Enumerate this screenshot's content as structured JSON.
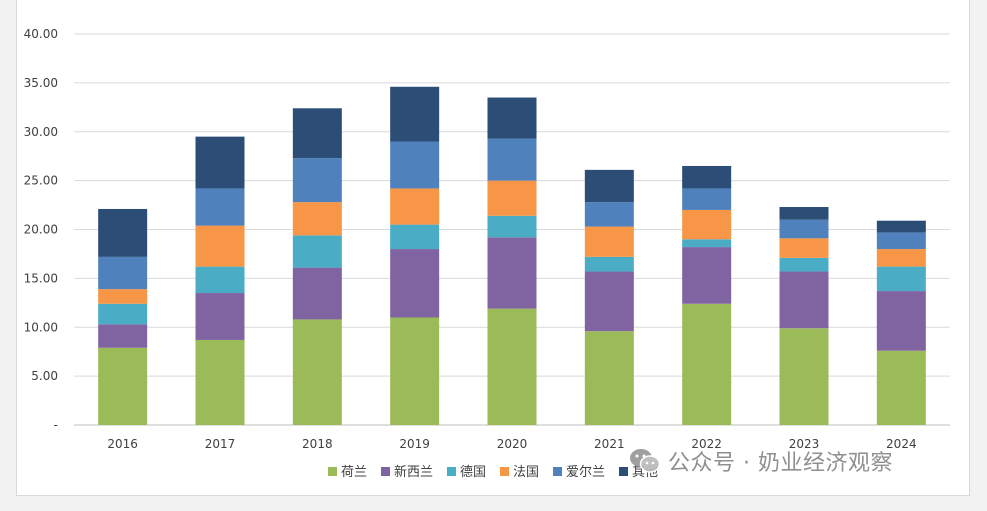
{
  "chart_data": {
    "type": "bar",
    "stacked": true,
    "categories": [
      "2016",
      "2017",
      "2018",
      "2019",
      "2020",
      "2021",
      "2022",
      "2023",
      "2024"
    ],
    "ylim": [
      0,
      40
    ],
    "yticks": [
      0,
      5,
      10,
      15,
      20,
      25,
      30,
      35,
      40
    ],
    "ytick_labels": [
      "-",
      "5.00",
      "10.00",
      "15.00",
      "20.00",
      "25.00",
      "30.00",
      "35.00",
      "40.00"
    ],
    "grid": true,
    "legend_position": "bottom",
    "series": [
      {
        "name": "荷兰",
        "color": "#9bbb59",
        "values": [
          7.9,
          8.7,
          10.8,
          11.0,
          11.9,
          9.6,
          12.4,
          9.9,
          7.6
        ]
      },
      {
        "name": "新西兰",
        "color": "#8064a2",
        "values": [
          2.4,
          4.8,
          5.3,
          7.0,
          7.3,
          6.1,
          5.8,
          5.8,
          6.1
        ]
      },
      {
        "name": "德国",
        "color": "#4bacc6",
        "values": [
          2.1,
          2.7,
          3.3,
          2.5,
          2.2,
          1.5,
          0.8,
          1.4,
          2.5
        ]
      },
      {
        "name": "法国",
        "color": "#f79646",
        "values": [
          1.5,
          4.2,
          3.4,
          3.7,
          3.6,
          3.1,
          3.0,
          2.0,
          1.8
        ]
      },
      {
        "name": "爱尔兰",
        "color": "#4f81bd",
        "values": [
          3.3,
          3.8,
          4.5,
          4.8,
          4.3,
          2.5,
          2.2,
          1.9,
          1.7
        ]
      },
      {
        "name": "其他",
        "color": "#2c4d75",
        "values": [
          4.9,
          5.3,
          5.1,
          5.6,
          4.2,
          3.3,
          2.3,
          1.3,
          1.2
        ]
      }
    ]
  },
  "watermark": {
    "text": "公众号 · 奶业经济观察"
  }
}
